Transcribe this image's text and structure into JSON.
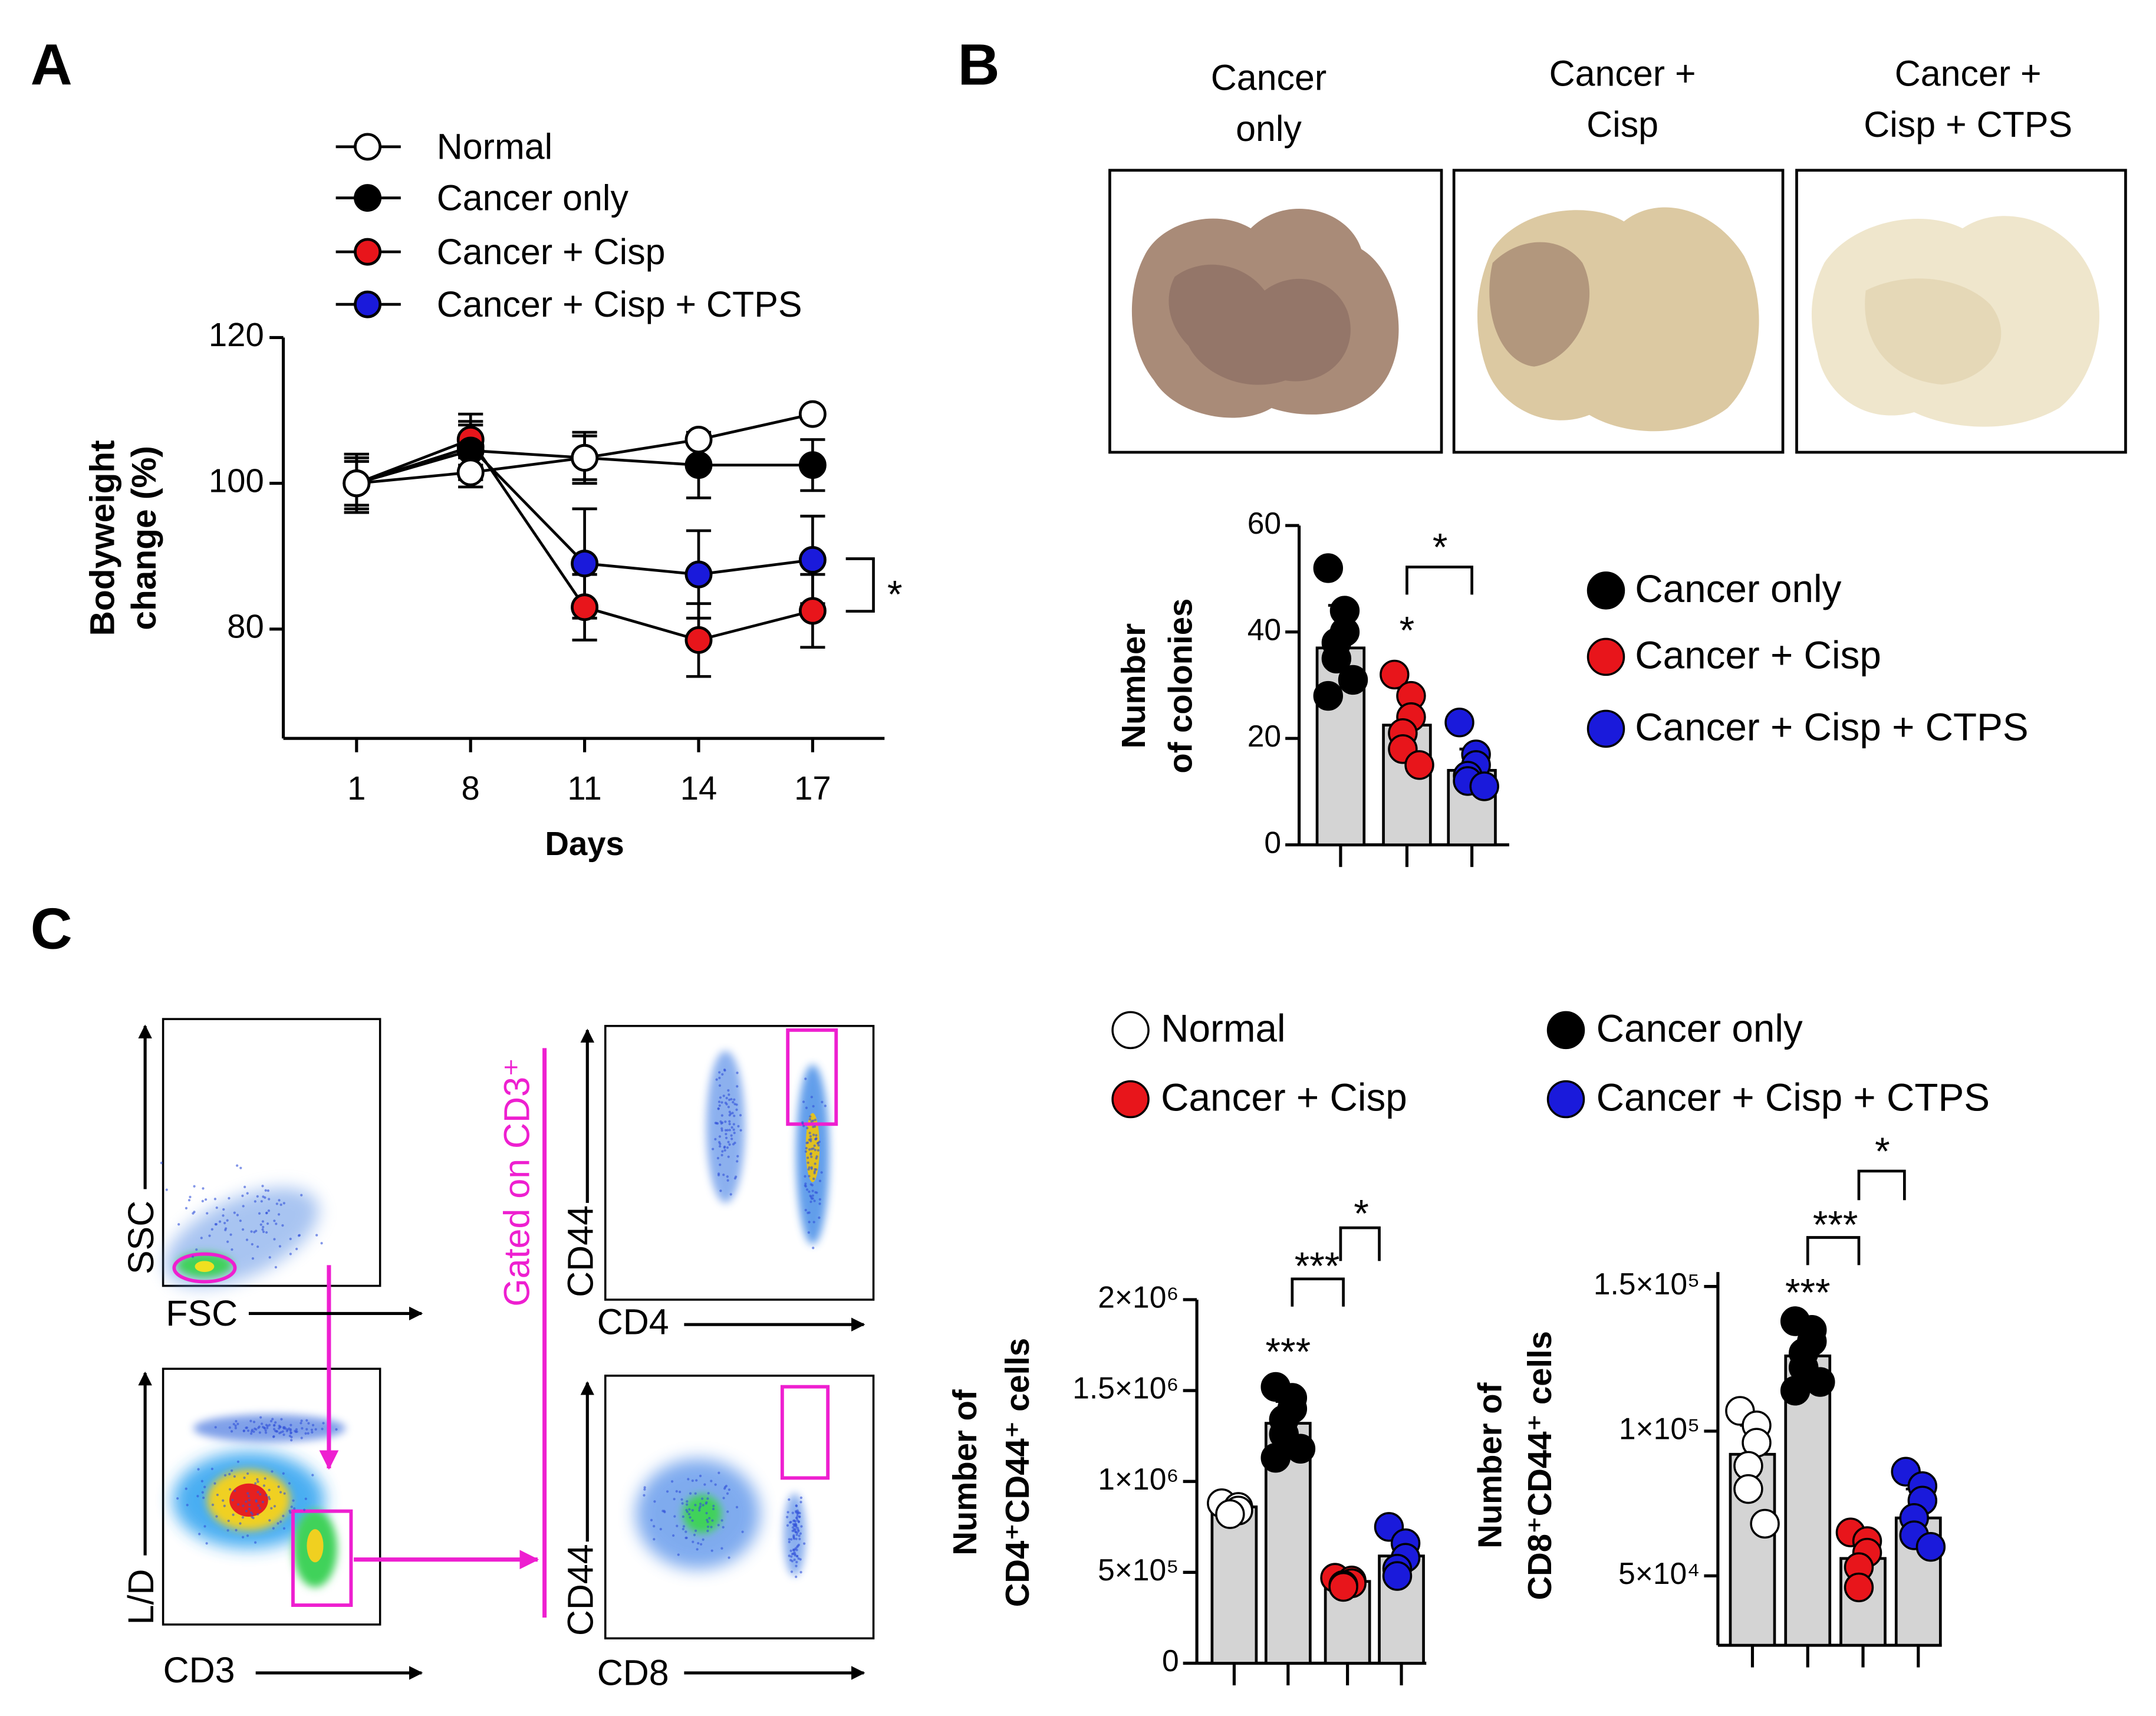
{
  "panel_labels": [
    "A",
    "B",
    "C"
  ],
  "chart_data": [
    {
      "type": "line",
      "xlabel": "Days",
      "ylabel": [
        "Bodyweight",
        "change (%)"
      ],
      "categories": [
        "1",
        "8",
        "11",
        "14",
        "17"
      ],
      "ylim": [
        65,
        120
      ],
      "yticks": [
        80,
        100,
        120
      ],
      "series": [
        {
          "name": "Normal",
          "color": "#ffffff",
          "values": [
            100,
            101.5,
            103.5,
            106,
            109.5
          ],
          "errors": [
            3.5,
            2,
            3,
            0,
            0
          ]
        },
        {
          "name": "Cancer only",
          "color": "#000000",
          "values": [
            100,
            104.5,
            103.5,
            102.5,
            102.5
          ],
          "errors": [
            4,
            4,
            3.5,
            4.5,
            3.5
          ]
        },
        {
          "name": "Cancer + Cisp",
          "color": "#e8151b",
          "values": [
            100,
            106,
            83,
            78.5,
            82.5
          ],
          "errors": [
            4,
            3.5,
            4.5,
            5,
            5
          ]
        },
        {
          "name": "Cancer + Cisp + CTPS",
          "color": "#1a1adb",
          "values": [
            100,
            105,
            89,
            87.5,
            89.5
          ],
          "errors": [
            3,
            3,
            7.5,
            6,
            6
          ]
        }
      ],
      "annotations": [
        "*"
      ]
    },
    {
      "type": "bar",
      "ylabel": [
        "Number",
        "of colonies"
      ],
      "ylim": [
        0,
        60
      ],
      "yticks": [
        0,
        20,
        40,
        60
      ],
      "categories": [
        "Cancer only",
        "Cancer + Cisp",
        "Cancer + Cisp + CTPS"
      ],
      "colors": [
        "#000000",
        "#e8151b",
        "#1a1adb"
      ],
      "values": [
        37,
        22.5,
        14
      ],
      "errors": [
        8,
        7,
        4
      ],
      "points": [
        [
          52,
          44,
          40,
          38,
          35,
          31,
          28
        ],
        [
          32,
          28,
          24,
          21,
          18,
          15
        ],
        [
          23,
          17,
          15,
          13,
          12,
          11
        ]
      ],
      "annotations": [
        "*",
        "*"
      ]
    },
    {
      "type": "bar",
      "ylabel": [
        "Number of",
        "CD4⁺CD44⁺ cells"
      ],
      "ylim": [
        0,
        2000000
      ],
      "yticks": [
        0,
        {
          "value": 500000,
          "label": "5×10⁵"
        },
        {
          "value": 1000000,
          "label": "1×10⁶"
        },
        {
          "value": 1500000,
          "label": "1.5×10⁶"
        },
        {
          "value": 2000000,
          "label": "2×10⁶"
        }
      ],
      "values": [
        860000,
        1320000,
        450000,
        590000
      ],
      "errors": [
        50000,
        120000,
        30000,
        100000
      ],
      "points": [
        [
          880000,
          860000,
          840000,
          820000
        ],
        [
          1520000,
          1460000,
          1400000,
          1340000,
          1260000,
          1180000,
          1130000
        ],
        [
          470000,
          455000,
          440000,
          430000,
          420000
        ],
        [
          750000,
          660000,
          580000,
          520000,
          480000
        ]
      ],
      "annotations": [
        "***",
        "***",
        "*"
      ]
    },
    {
      "type": "bar",
      "ylabel": [
        "Number of",
        "CD8⁺CD44⁺ cells"
      ],
      "ylim": [
        26000,
        155000
      ],
      "yticks": [
        {
          "value": 50000,
          "label": "5×10⁴"
        },
        {
          "value": 100000,
          "label": "1×10⁵"
        },
        {
          "value": 150000,
          "label": "1.5×10⁵"
        }
      ],
      "values": [
        92000,
        126000,
        56000,
        70000
      ],
      "errors": [
        10000,
        8000,
        8000,
        10000
      ],
      "points": [
        [
          107000,
          102000,
          96000,
          88000,
          80000,
          68000
        ],
        [
          138000,
          135000,
          131000,
          127000,
          122000,
          117000,
          114000
        ],
        [
          65000,
          62000,
          58000,
          53000,
          46000
        ],
        [
          86000,
          81000,
          76000,
          70000,
          64000,
          60000
        ]
      ],
      "annotations": [
        "***",
        "***",
        "*"
      ]
    }
  ],
  "legend_c": [
    {
      "name": "Normal",
      "color": "#ffffff"
    },
    {
      "name": "Cancer only",
      "color": "#000000"
    },
    {
      "name": "Cancer + Cisp",
      "color": "#e8151b"
    },
    {
      "name": "Cancer + Cisp + CTPS",
      "color": "#1a1adb"
    }
  ],
  "photos": [
    [
      "Cancer",
      "only"
    ],
    [
      "Cancer +",
      "Cisp"
    ],
    [
      "Cancer +",
      "Cisp + CTPS"
    ]
  ],
  "flow": {
    "axes": [
      "SSC",
      "FSC",
      "L/D",
      "CD3",
      "CD44",
      "CD4",
      "CD44",
      "CD8"
    ],
    "gate_label": "Gated on CD3⁺"
  }
}
